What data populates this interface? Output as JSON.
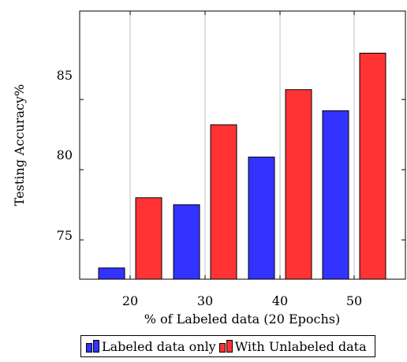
{
  "chart_data": {
    "type": "bar",
    "categories": [
      "20",
      "30",
      "40",
      "50"
    ],
    "series": [
      {
        "name": "Labeled data only",
        "color": "#3333ff",
        "values": [
          73.0,
          77.5,
          80.9,
          84.2
        ]
      },
      {
        "name": "With Unlabeled data",
        "color": "#ff3333",
        "values": [
          78.0,
          83.2,
          85.7,
          88.3
        ]
      }
    ],
    "xlabel": "% of Labeled data (20 Epochs)",
    "ylabel": "Testing Accuracy%",
    "yticks": [
      "75",
      "80",
      "85"
    ],
    "ylim": [
      72.2,
      91.3
    ],
    "grid": "vertical",
    "legend_position": "bottom"
  }
}
